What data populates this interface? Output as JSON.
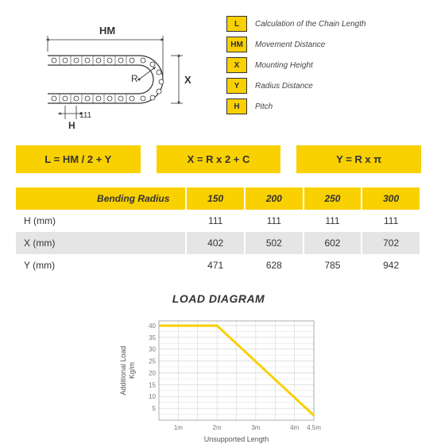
{
  "diagram": {
    "hm_label": "HM",
    "r_label": "R",
    "x_label": "X",
    "h_label": "H",
    "h_value": "111"
  },
  "legend": [
    {
      "sym": "L",
      "text": "Calculation of the Chain Length"
    },
    {
      "sym": "HM",
      "text": "Movement Distance"
    },
    {
      "sym": "X",
      "text": "Mounting Height"
    },
    {
      "sym": "Y",
      "text": "Radius Distance"
    },
    {
      "sym": "H",
      "text": "Pitch"
    }
  ],
  "formulas": [
    "L = HM / 2 + Y",
    "X = R x 2 + C",
    "Y = R x π"
  ],
  "table": {
    "header": [
      "Bending Radius",
      "150",
      "200",
      "250",
      "300"
    ],
    "rows": [
      [
        "H (mm)",
        "111",
        "111",
        "111",
        "111"
      ],
      [
        "X (mm)",
        "402",
        "502",
        "602",
        "702"
      ],
      [
        "Y (mm)",
        "471",
        "628",
        "785",
        "942"
      ]
    ]
  },
  "chart": {
    "title": "LOAD DIAGRAM",
    "ylabel": "Additional Load\nKg/m",
    "xlabel": "Unsupported Length",
    "xticks": [
      "1m",
      "2m",
      "3m",
      "4m",
      "4.5m"
    ],
    "yticks": [
      5,
      10,
      15,
      20,
      25,
      30,
      35,
      40
    ],
    "ylim": [
      0,
      42
    ],
    "xlim": [
      0.5,
      4.5
    ],
    "line": [
      {
        "x": 0.5,
        "y": 40
      },
      {
        "x": 2.0,
        "y": 40
      },
      {
        "x": 4.5,
        "y": 2
      }
    ],
    "line_color": "#f9d000",
    "line_width": 3,
    "grid_color": "#ccc",
    "axis_color": "#999"
  }
}
